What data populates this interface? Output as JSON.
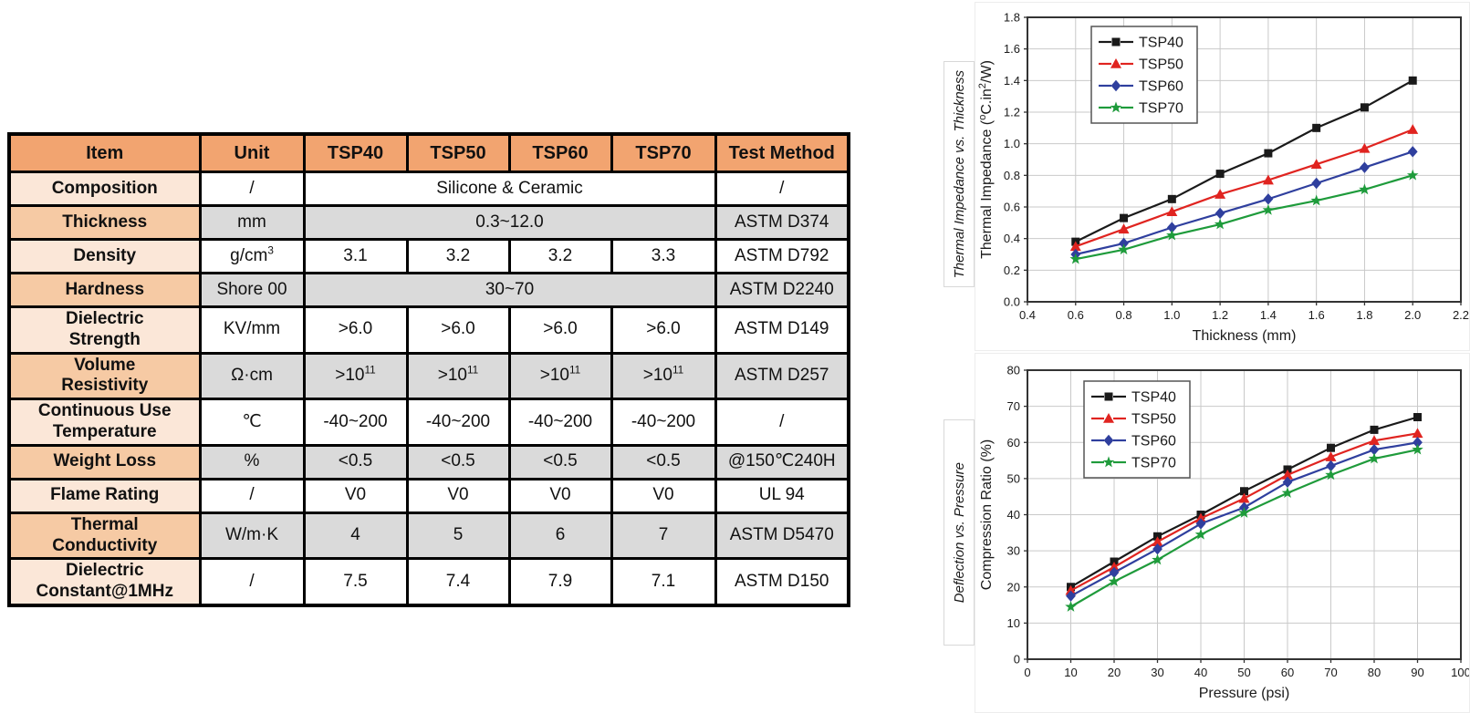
{
  "page": {
    "background": "#ffffff"
  },
  "table": {
    "columns": [
      "Item",
      "Unit",
      "TSP40",
      "TSP50",
      "TSP60",
      "TSP70",
      "Test Method"
    ],
    "rows": [
      {
        "item": "Composition",
        "unit": "/",
        "values": [
          "Silicone & Ceramic"
        ],
        "span": 4,
        "method": "/"
      },
      {
        "item": "Thickness",
        "unit": "mm",
        "values": [
          "0.3~12.0"
        ],
        "span": 4,
        "method": "ASTM D374"
      },
      {
        "item": "Density",
        "unit": "g/cm^{3}",
        "values": [
          "3.1",
          "3.2",
          "3.2",
          "3.3"
        ],
        "span": 1,
        "method": "ASTM D792"
      },
      {
        "item": "Hardness",
        "unit": "Shore 00",
        "values": [
          "30~70"
        ],
        "span": 4,
        "method": "ASTM D2240"
      },
      {
        "item": "Dielectric\nStrength",
        "unit": "KV/mm",
        "values": [
          ">6.0",
          ">6.0",
          ">6.0",
          ">6.0"
        ],
        "span": 1,
        "method": "ASTM D149"
      },
      {
        "item": "Volume\nResistivity",
        "unit": "Ω·cm",
        "values": [
          ">10^{11}",
          ">10^{11}",
          ">10^{11}",
          ">10^{11}"
        ],
        "span": 1,
        "method": "ASTM D257"
      },
      {
        "item": "Continuous Use\nTemperature",
        "unit": "℃",
        "values": [
          "-40~200",
          "-40~200",
          "-40~200",
          "-40~200"
        ],
        "span": 1,
        "method": "/"
      },
      {
        "item": "Weight Loss",
        "unit": "%",
        "values": [
          "<0.5",
          "<0.5",
          "<0.5",
          "<0.5"
        ],
        "span": 1,
        "method": "@150℃240H"
      },
      {
        "item": "Flame Rating",
        "unit": "/",
        "values": [
          "V0",
          "V0",
          "V0",
          "V0"
        ],
        "span": 1,
        "method": "UL 94"
      },
      {
        "item": "Thermal\nConductivity",
        "unit": "W/m·K",
        "values": [
          "4",
          "5",
          "6",
          "7"
        ],
        "span": 1,
        "method": "ASTM D5470"
      },
      {
        "item": "Dielectric\nConstant@1MHz",
        "unit": "/",
        "values": [
          "7.5",
          "7.4",
          "7.9",
          "7.1"
        ],
        "span": 1,
        "method": "ASTM D150"
      }
    ],
    "colors": {
      "header_bg": "#f2a470",
      "item_light_bg": "#fbe7d8",
      "item_alt_bg": "#f6caa4",
      "band_bg": "#dadada",
      "border": "#000000"
    }
  },
  "side_labels": {
    "top": "Thermal Impedance vs. Thickness",
    "bottom": "Deflection vs. Pressure"
  },
  "chart_data": [
    {
      "id": "thermal-impedance-vs-thickness",
      "type": "line",
      "title": "Thermal Impedance vs. Thickness",
      "xlabel": "Thickness (mm)",
      "ylabel": "Thermal Impedance (^{o}C.in^{2}/W)",
      "xlim": [
        0.4,
        2.2
      ],
      "ylim": [
        0.0,
        1.8
      ],
      "xticks": [
        "0.4",
        "0.6",
        "0.8",
        "1.0",
        "1.2",
        "1.4",
        "1.6",
        "1.8",
        "2.0",
        "2.2"
      ],
      "yticks": [
        "0.0",
        "0.2",
        "0.4",
        "0.6",
        "0.8",
        "1.0",
        "1.2",
        "1.4",
        "1.6",
        "1.8"
      ],
      "grid": true,
      "legend_position": "top-left",
      "x": [
        0.6,
        0.8,
        1.0,
        1.2,
        1.4,
        1.6,
        1.8,
        2.0
      ],
      "series": [
        {
          "name": "TSP40",
          "color": "#1a1a1a",
          "marker": "square",
          "values": [
            0.38,
            0.53,
            0.65,
            0.81,
            0.94,
            1.1,
            1.23,
            1.4
          ]
        },
        {
          "name": "TSP50",
          "color": "#e02420",
          "marker": "triangle",
          "values": [
            0.35,
            0.46,
            0.57,
            0.68,
            0.77,
            0.87,
            0.97,
            1.09
          ]
        },
        {
          "name": "TSP60",
          "color": "#2f3f9e",
          "marker": "diamond",
          "values": [
            0.3,
            0.37,
            0.47,
            0.56,
            0.65,
            0.75,
            0.85,
            0.95
          ]
        },
        {
          "name": "TSP70",
          "color": "#1e9b3b",
          "marker": "star",
          "values": [
            0.27,
            0.33,
            0.42,
            0.49,
            0.58,
            0.64,
            0.71,
            0.8
          ]
        }
      ]
    },
    {
      "id": "compression-ratio-vs-pressure",
      "type": "line",
      "title": "Deflection vs. Pressure",
      "xlabel": "Pressure (psi)",
      "ylabel": "Compression Ratio (%)",
      "xlim": [
        0,
        100
      ],
      "ylim": [
        0,
        80
      ],
      "xticks": [
        "0",
        "10",
        "20",
        "30",
        "40",
        "50",
        "60",
        "70",
        "80",
        "90",
        "100"
      ],
      "yticks": [
        "0",
        "10",
        "20",
        "30",
        "40",
        "50",
        "60",
        "70",
        "80"
      ],
      "grid": true,
      "legend_position": "top-left",
      "x": [
        10,
        20,
        30,
        40,
        50,
        60,
        70,
        80,
        90
      ],
      "series": [
        {
          "name": "TSP40",
          "color": "#1a1a1a",
          "marker": "square",
          "values": [
            20,
            27,
            34,
            40,
            46.5,
            52.5,
            58.5,
            63.5,
            67
          ]
        },
        {
          "name": "TSP50",
          "color": "#e02420",
          "marker": "triangle",
          "values": [
            19,
            25.5,
            32.5,
            39,
            44.5,
            51,
            56,
            60.5,
            62.5
          ]
        },
        {
          "name": "TSP60",
          "color": "#2f3f9e",
          "marker": "diamond",
          "values": [
            17.5,
            24,
            30.5,
            37.5,
            42,
            49,
            53.5,
            58,
            60
          ]
        },
        {
          "name": "TSP70",
          "color": "#1f9b3b",
          "marker": "star",
          "values": [
            14.5,
            21.5,
            27.5,
            34.5,
            40.5,
            46,
            51,
            55.5,
            58
          ]
        }
      ]
    }
  ]
}
